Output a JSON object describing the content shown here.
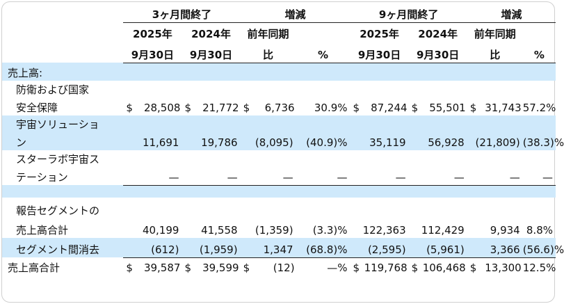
{
  "header": {
    "group_3m": "3ヶ月間終了",
    "group_chg1": "増減",
    "group_9m": "9ヶ月間終了",
    "group_chg2": "増減",
    "col_2025a": "2025年",
    "col_2025b": "9月30日",
    "col_2024a": "2024年",
    "col_2024b": "9月30日",
    "col_yoy_a": "前年同期",
    "col_yoy_b": "比",
    "col_pct": "%"
  },
  "section_title": "売上高:",
  "rows": {
    "defense": {
      "label_1": "防衛および国家",
      "label_2": "安全保障",
      "q_2025": "$ 28,508",
      "q_2024": "$ 21,772",
      "q_chg": "$ 6,736",
      "q_pct": "30.9%",
      "n_2025": "$ 87,244",
      "n_2024": "$ 55,501",
      "n_chg": "$ 31,743",
      "n_pct": "57.2%"
    },
    "space": {
      "label_1": "宇宙ソリューショ",
      "label_2": "ン",
      "q_2025": "11,691",
      "q_2024": "19,786",
      "q_chg": "(8,095)",
      "q_pct": "(40.9)%",
      "n_2025": "35,119",
      "n_2024": "56,928",
      "n_chg": "(21,809)",
      "n_pct": "(38.3)%"
    },
    "starlab": {
      "label_1": "スターラボ宇宙ス",
      "label_2": "テーション",
      "dash": "—"
    },
    "segment_total": {
      "label_1": "報告セグメントの",
      "label_2": "売上高合計",
      "q_2025": "40,199",
      "q_2024": "41,558",
      "q_chg": "(1,359)",
      "q_pct": "(3.3)%",
      "n_2025": "122,363",
      "n_2024": "112,429",
      "n_chg": "9,934",
      "n_pct": "8.8%"
    },
    "elimination": {
      "label": "セグメント間消去",
      "q_2025": "(612)",
      "q_2024": "(1,959)",
      "q_chg": "1,347",
      "q_pct": "(68.8)%",
      "n_2025": "(2,595)",
      "n_2024": "(5,961)",
      "n_chg": "3,366",
      "n_pct": "(56.6)%"
    },
    "grand_total": {
      "label": "売上高合計",
      "cur": "$",
      "q_2025": "39,587",
      "q_2024": "39,599",
      "q_chg": "(12)",
      "q_pct": "—%",
      "n_2025": "119,768",
      "n_2024": "106,468",
      "n_chg": "13,300",
      "n_pct": "12.5%"
    }
  }
}
